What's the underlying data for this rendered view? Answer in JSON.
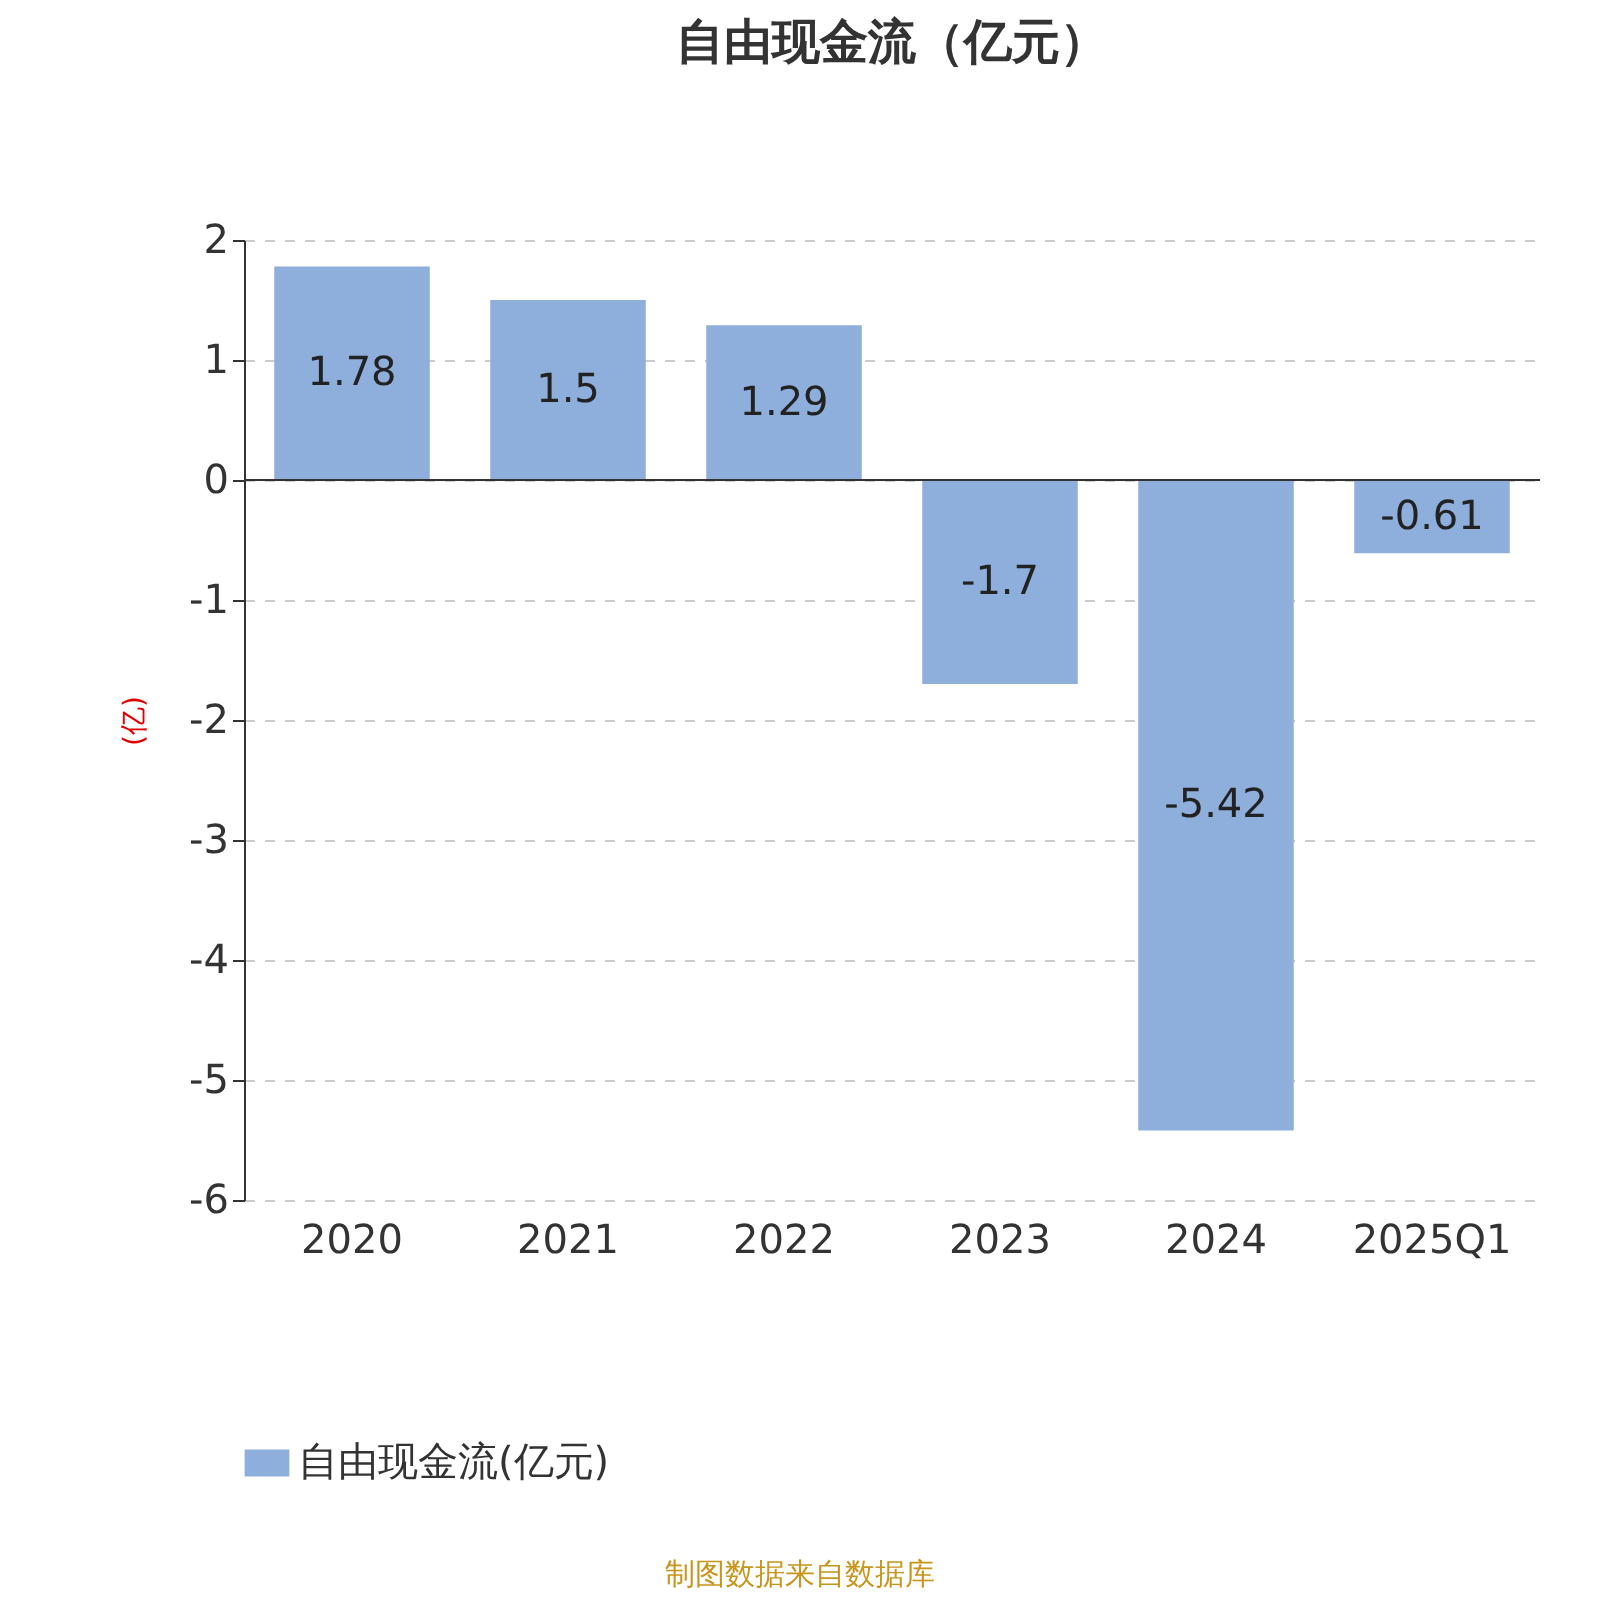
{
  "chart_data": {
    "type": "bar",
    "title": "自由现金流（亿元）",
    "ylabel": "(亿)",
    "categories": [
      "2020",
      "2021",
      "2022",
      "2023",
      "2024",
      "2025Q1"
    ],
    "series": [
      {
        "name": "自由现金流(亿元)",
        "color": "#8eaedb",
        "values": [
          1.78,
          1.5,
          1.29,
          -1.7,
          -5.42,
          -0.61
        ]
      }
    ],
    "ylim": [
      -6,
      2
    ],
    "yticks": [
      -6,
      -5,
      -4,
      -3,
      -2,
      -1,
      0,
      1,
      2
    ],
    "grid": "y",
    "data_labels": true,
    "legend": "bottom",
    "annotations": [
      "制图数据来自数据库"
    ]
  }
}
